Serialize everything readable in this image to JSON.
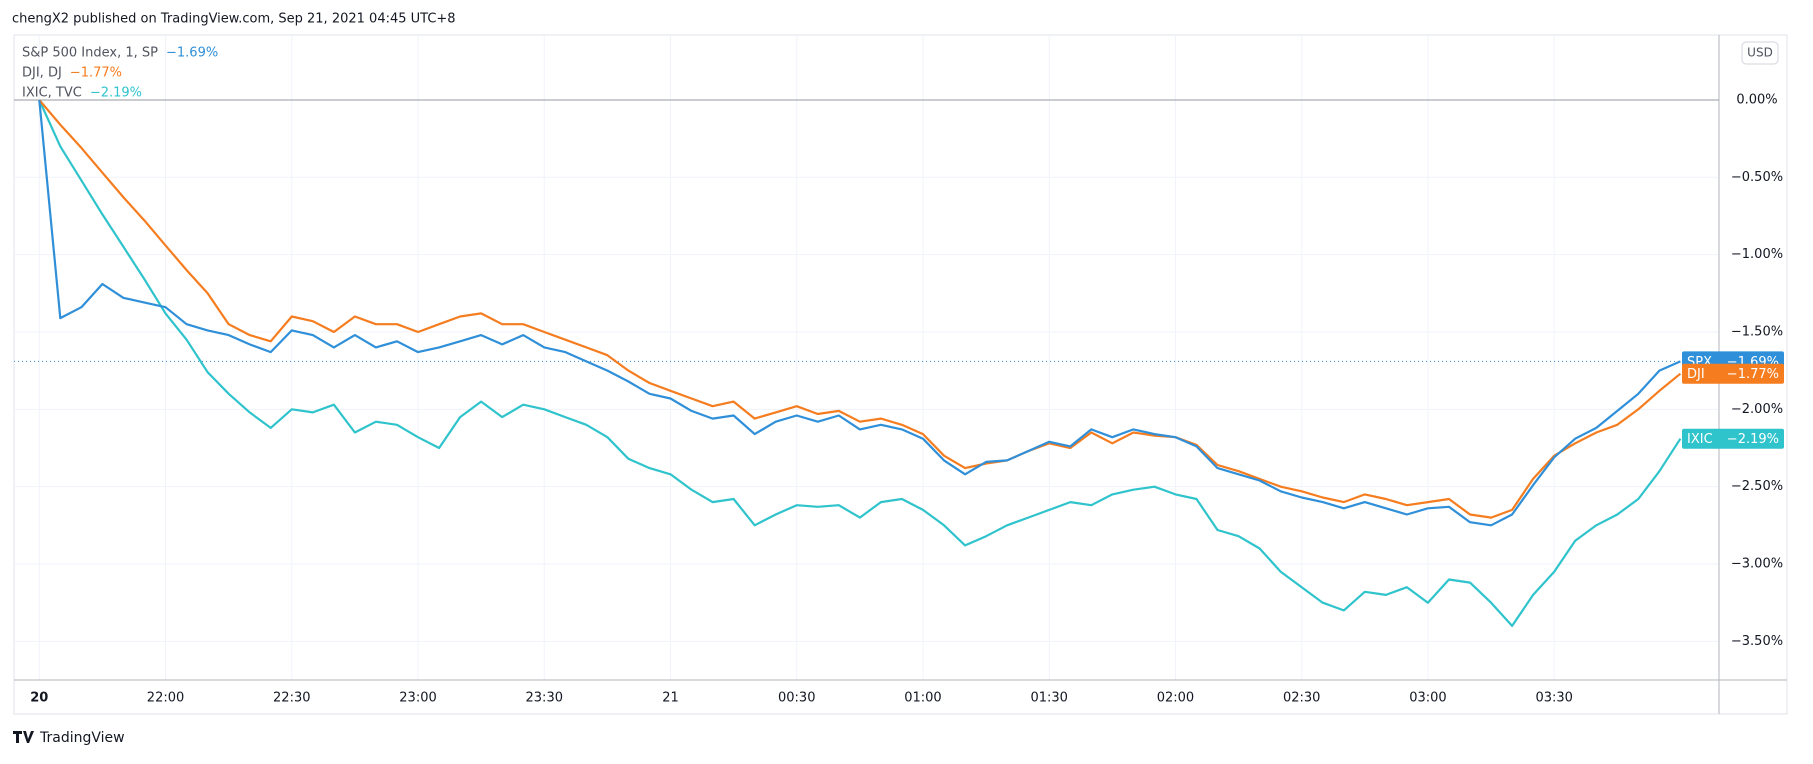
{
  "header": {
    "text": "chengX2 published on TradingView.com, Sep 21, 2021 04:45 UTC+8"
  },
  "currency_button": "USD",
  "footer": {
    "brand": "TradingView"
  },
  "chart_data": {
    "type": "line",
    "categories": [
      "20",
      null,
      null,
      null,
      null,
      null,
      "22:00",
      null,
      null,
      null,
      null,
      null,
      "22:30",
      null,
      null,
      null,
      null,
      null,
      "23:00",
      null,
      null,
      null,
      null,
      null,
      "23:30",
      null,
      null,
      null,
      null,
      null,
      "21",
      null,
      null,
      null,
      null,
      null,
      "00:30",
      null,
      null,
      null,
      null,
      null,
      "01:00",
      null,
      null,
      null,
      null,
      null,
      "01:30",
      null,
      null,
      null,
      null,
      null,
      "02:00",
      null,
      null,
      null,
      null,
      null,
      "02:30",
      null,
      null,
      null,
      null,
      null,
      "03:00",
      null,
      null,
      null,
      null,
      null,
      "03:30",
      null,
      null,
      null,
      null,
      null,
      null
    ],
    "ylim": [
      -3.75,
      0.42
    ],
    "yticks": [
      {
        "value": 0,
        "label": "0.00%"
      },
      {
        "value": -0.5,
        "label": "−0.50%"
      },
      {
        "value": -1,
        "label": "−1.00%"
      },
      {
        "value": -1.5,
        "label": "−1.50%"
      },
      {
        "value": -2,
        "label": "−2.00%"
      },
      {
        "value": -2.5,
        "label": "−2.50%"
      },
      {
        "value": -3,
        "label": "−3.00%"
      },
      {
        "value": -3.5,
        "label": "−3.50%"
      }
    ],
    "grid": true,
    "series": [
      {
        "name": "S&P 500 Index, 1, SP",
        "symbol": "SPX",
        "color": "#2f8fd8",
        "last_value_label": "−1.69%",
        "values": [
          0,
          -1.41,
          -1.34,
          -1.19,
          -1.28,
          -1.31,
          -1.34,
          -1.45,
          -1.49,
          -1.52,
          -1.58,
          -1.63,
          -1.49,
          -1.52,
          -1.6,
          -1.52,
          -1.6,
          -1.56,
          -1.63,
          -1.6,
          -1.56,
          -1.52,
          -1.58,
          -1.52,
          -1.6,
          -1.63,
          -1.69,
          -1.75,
          -1.82,
          -1.9,
          -1.93,
          -2.01,
          -2.06,
          -2.04,
          -2.16,
          -2.08,
          -2.04,
          -2.08,
          -2.04,
          -2.13,
          -2.1,
          -2.13,
          -2.19,
          -2.33,
          -2.42,
          -2.34,
          -2.33,
          -2.27,
          -2.21,
          -2.24,
          -2.13,
          -2.18,
          -2.13,
          -2.16,
          -2.18,
          -2.24,
          -2.38,
          -2.42,
          -2.46,
          -2.53,
          -2.57,
          -2.6,
          -2.64,
          -2.6,
          -2.64,
          -2.68,
          -2.64,
          -2.63,
          -2.73,
          -2.75,
          -2.68,
          -2.49,
          -2.31,
          -2.19,
          -2.12,
          -2.01,
          -1.9,
          -1.75,
          -1.69
        ]
      },
      {
        "name": "DJI, DJ",
        "symbol": "DJI",
        "color": "#f57c1f",
        "last_value_label": "−1.77%",
        "values": [
          0,
          -0.16,
          -0.31,
          -0.47,
          -0.63,
          -0.78,
          -0.94,
          -1.1,
          -1.25,
          -1.45,
          -1.52,
          -1.56,
          -1.4,
          -1.43,
          -1.5,
          -1.4,
          -1.45,
          -1.45,
          -1.5,
          -1.45,
          -1.4,
          -1.38,
          -1.45,
          -1.45,
          -1.5,
          -1.55,
          -1.6,
          -1.65,
          -1.75,
          -1.83,
          -1.88,
          -1.93,
          -1.98,
          -1.95,
          -2.06,
          -2.02,
          -1.98,
          -2.03,
          -2.01,
          -2.08,
          -2.06,
          -2.1,
          -2.16,
          -2.3,
          -2.38,
          -2.35,
          -2.33,
          -2.27,
          -2.22,
          -2.25,
          -2.15,
          -2.22,
          -2.15,
          -2.17,
          -2.18,
          -2.23,
          -2.36,
          -2.4,
          -2.45,
          -2.5,
          -2.53,
          -2.57,
          -2.6,
          -2.55,
          -2.58,
          -2.62,
          -2.6,
          -2.58,
          -2.68,
          -2.7,
          -2.65,
          -2.45,
          -2.3,
          -2.22,
          -2.15,
          -2.1,
          -2,
          -1.88,
          -1.77
        ]
      },
      {
        "name": "IXIC, TVC",
        "symbol": "IXIC",
        "color": "#2fc3cc",
        "last_value_label": "−2.19%",
        "values": [
          0,
          -0.3,
          -0.52,
          -0.74,
          -0.95,
          -1.16,
          -1.38,
          -1.55,
          -1.76,
          -1.9,
          -2.02,
          -2.12,
          -2,
          -2.02,
          -1.97,
          -2.15,
          -2.08,
          -2.1,
          -2.18,
          -2.25,
          -2.05,
          -1.95,
          -2.05,
          -1.97,
          -2,
          -2.05,
          -2.1,
          -2.18,
          -2.32,
          -2.38,
          -2.42,
          -2.52,
          -2.6,
          -2.58,
          -2.75,
          -2.68,
          -2.62,
          -2.63,
          -2.62,
          -2.7,
          -2.6,
          -2.58,
          -2.65,
          -2.75,
          -2.88,
          -2.82,
          -2.75,
          -2.7,
          -2.65,
          -2.6,
          -2.62,
          -2.55,
          -2.52,
          -2.5,
          -2.55,
          -2.58,
          -2.78,
          -2.82,
          -2.9,
          -3.05,
          -3.15,
          -3.25,
          -3.3,
          -3.18,
          -3.2,
          -3.15,
          -3.25,
          -3.1,
          -3.12,
          -3.25,
          -3.4,
          -3.2,
          -3.05,
          -2.85,
          -2.75,
          -2.68,
          -2.58,
          -2.4,
          -2.19
        ]
      }
    ]
  }
}
